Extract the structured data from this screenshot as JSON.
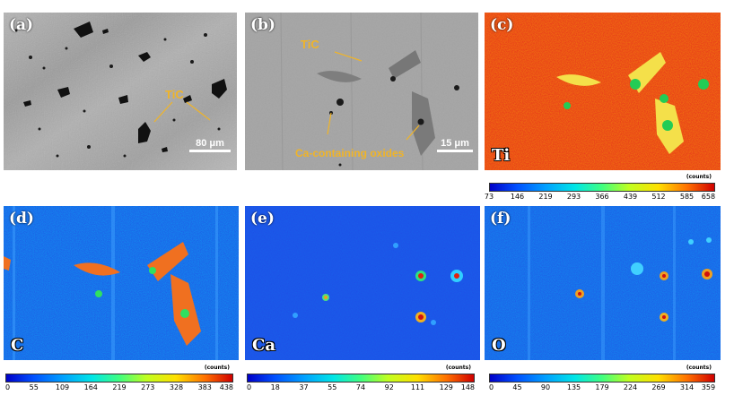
{
  "panels": {
    "a": {
      "label": "(a)",
      "annotation": "TiC",
      "scale": "80 μm"
    },
    "b": {
      "label": "(b)",
      "annotation_tic": "TiC",
      "annotation_ca": "Ca-containing oxides",
      "scale": "15 μm"
    },
    "c": {
      "label": "(c)",
      "element": "Ti"
    },
    "d": {
      "label": "(d)",
      "element": "C"
    },
    "e": {
      "label": "(e)",
      "element": "Ca"
    },
    "f": {
      "label": "(f)",
      "element": "O"
    }
  },
  "colorbars": {
    "title": "(counts)",
    "ti": [
      "73",
      "146",
      "219",
      "293",
      "366",
      "439",
      "512",
      "585",
      "658"
    ],
    "c": [
      "0",
      "55",
      "109",
      "164",
      "219",
      "273",
      "328",
      "383",
      "438"
    ],
    "ca": [
      "0",
      "18",
      "37",
      "55",
      "74",
      "92",
      "111",
      "129",
      "148"
    ],
    "o": [
      "0",
      "45",
      "90",
      "135",
      "179",
      "224",
      "269",
      "314",
      "359"
    ]
  },
  "colors": {
    "annotation": "#f0b428",
    "map_red": "#e62814",
    "map_blue": "#1e50e6",
    "sem_grey": "#a8a8a8"
  }
}
